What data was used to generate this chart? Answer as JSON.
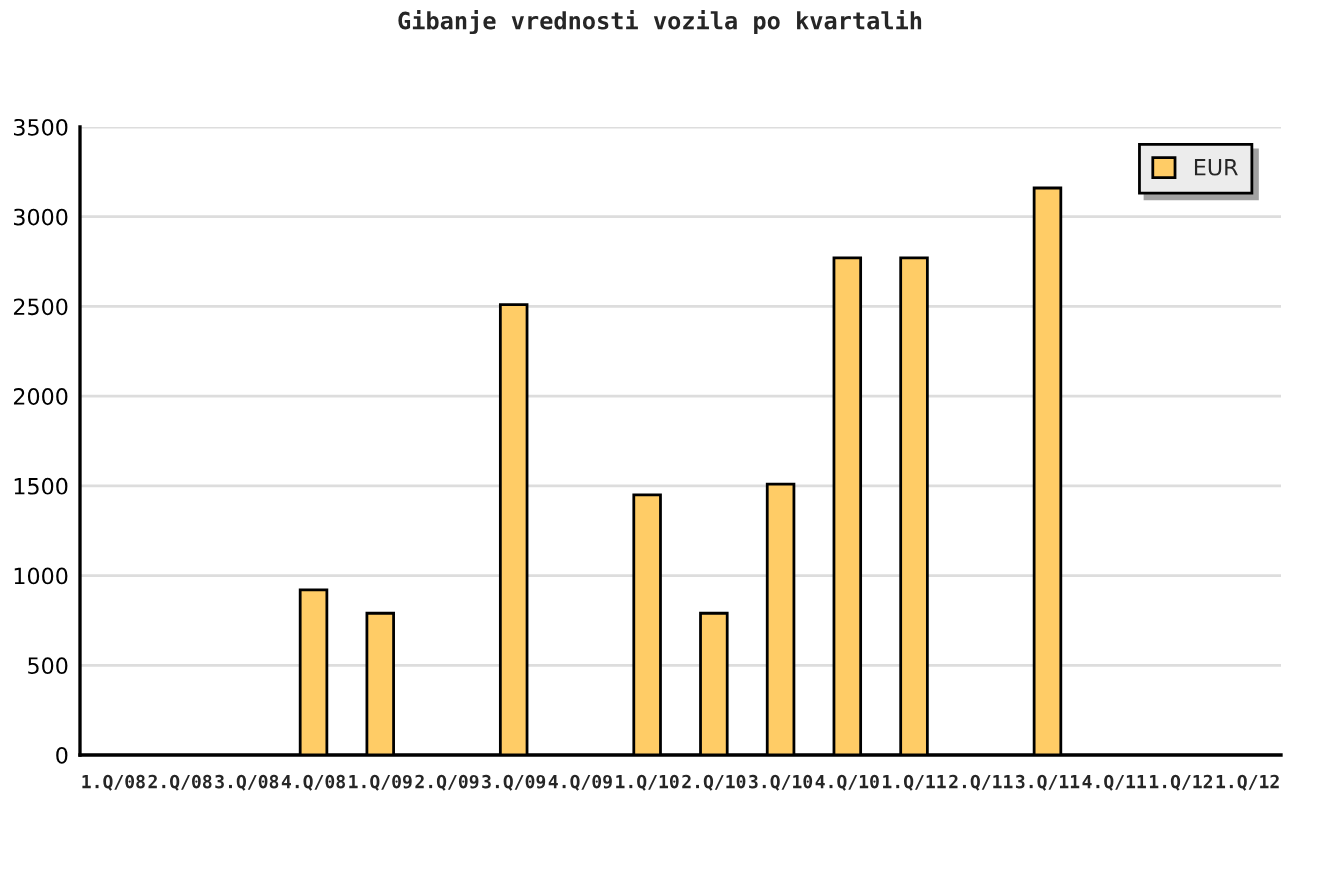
{
  "chart_data": {
    "type": "bar",
    "title": "Gibanje vrednosti vozila po kvartalih",
    "categories": [
      "1.Q/08",
      "2.Q/08",
      "3.Q/08",
      "4.Q/08",
      "1.Q/09",
      "2.Q/09",
      "3.Q/09",
      "4.Q/09",
      "1.Q/10",
      "2.Q/10",
      "3.Q/10",
      "4.Q/10",
      "1.Q/11",
      "2.Q/11",
      "3.Q/11",
      "4.Q/11",
      "1.Q/12",
      "1.Q/12"
    ],
    "series": [
      {
        "name": "EUR",
        "color": "#ffcc66",
        "values": [
          null,
          null,
          null,
          920,
          790,
          null,
          2510,
          null,
          1450,
          790,
          1510,
          2770,
          2770,
          null,
          3160,
          null,
          null,
          null
        ]
      }
    ],
    "ylim": [
      0,
      3500
    ],
    "yticks": [
      0,
      500,
      1000,
      1500,
      2000,
      2500,
      3000,
      3500
    ],
    "grid": "y",
    "legend": "top right"
  }
}
